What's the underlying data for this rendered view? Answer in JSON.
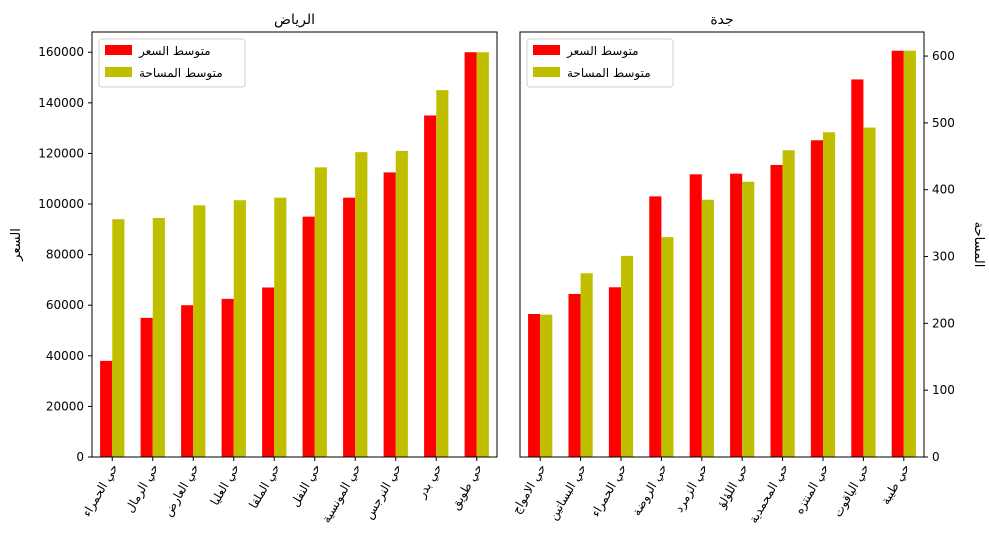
{
  "colors": {
    "price": "#ff0000",
    "area": "#bfbf00",
    "axis": "#000000",
    "background": "#ffffff"
  },
  "legend": {
    "price_label": "متوسط السعر",
    "area_label": "متوسط المساحة"
  },
  "chart_data": [
    {
      "type": "bar",
      "title": "الرياض",
      "ylabel": "السعر",
      "axis_side": "left",
      "ylim": [
        0,
        168000
      ],
      "yticks": [
        "0",
        "20000",
        "40000",
        "60000",
        "80000",
        "100000",
        "120000",
        "140000",
        "160000"
      ],
      "ytick_values": [
        0,
        20000,
        40000,
        60000,
        80000,
        100000,
        120000,
        140000,
        160000
      ],
      "legend_position": "top-left",
      "categories": [
        "حي الحمراء",
        "حي الرمال",
        "حي العارض",
        "حي العليا",
        "حي الملقا",
        "حي النفل",
        "حي المونسية",
        "حي النرجس",
        "حي بدر",
        "حي طويق"
      ],
      "series": [
        {
          "name": "متوسط السعر",
          "color": "#ff0000",
          "values": [
            38000,
            55000,
            60000,
            62500,
            67000,
            95000,
            102500,
            112500,
            135000,
            160000
          ]
        },
        {
          "name": "متوسط المساحة",
          "color": "#bfbf00",
          "values": [
            94000,
            94500,
            99500,
            101500,
            102500,
            114500,
            120500,
            121000,
            145000,
            160000
          ]
        }
      ]
    },
    {
      "type": "bar",
      "title": "جدة",
      "ylabel": "المساحة",
      "axis_side": "right",
      "ylim": [
        0,
        636
      ],
      "yticks": [
        "0",
        "100",
        "200",
        "300",
        "400",
        "500",
        "600"
      ],
      "ytick_values": [
        0,
        100,
        200,
        300,
        400,
        500,
        600
      ],
      "legend_position": "top-left",
      "categories": [
        "حي الامواج",
        "حي البساتين",
        "حي الحمراء",
        "حي الروضة",
        "حي الزمرد",
        "حي اللؤلؤ",
        "حي المحمدية",
        "حي المنتزه",
        "حي الياقوت",
        "حي طيبة"
      ],
      "series": [
        {
          "name": "متوسط السعر",
          "color": "#ff0000",
          "values": [
            214,
            244,
            254,
            390,
            423,
            424,
            437,
            474,
            565,
            608
          ]
        },
        {
          "name": "متوسط المساحة",
          "color": "#bfbf00",
          "values": [
            213,
            275,
            301,
            329,
            385,
            412,
            459,
            486,
            493,
            608
          ]
        }
      ]
    }
  ]
}
